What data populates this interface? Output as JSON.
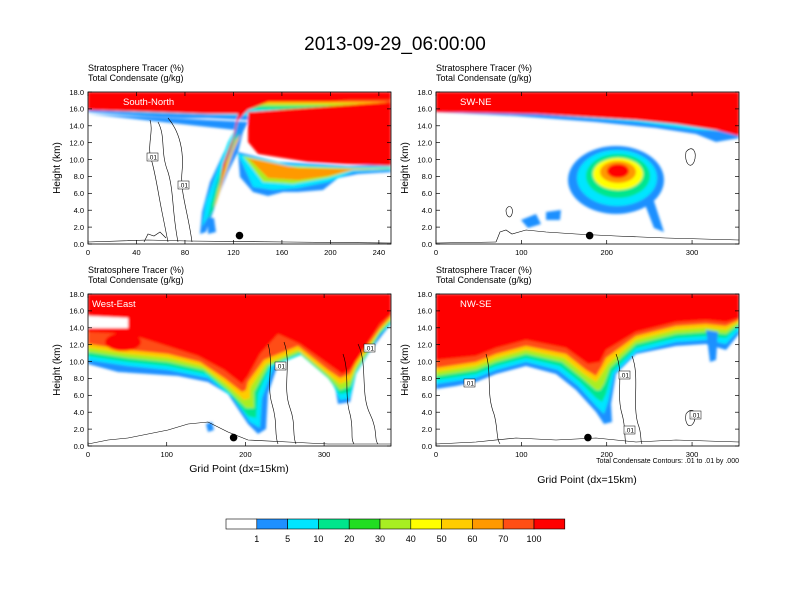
{
  "figure": {
    "title": "2013-09-29_06:00:00",
    "x_axis_title": "Grid Point (dx=15km)",
    "contour_note": "Total Condensate Contours: .01 to .01 by .000"
  },
  "colors": {
    "c1": "#ffffff",
    "c2": "#1e90ff",
    "c3": "#00e5ff",
    "c4": "#00e68c",
    "c5": "#22dd22",
    "c6": "#a8ee22",
    "c7": "#ffff00",
    "c8": "#ffcc00",
    "c9": "#ff9900",
    "c10": "#ff4e14",
    "c11": "#ff0000"
  },
  "chart_data": [
    {
      "type": "heatmap",
      "name": "South-North",
      "title_line1": "Stratosphere Tracer   (%)",
      "title_line2": "Total Condensate   (g/kg)",
      "ylabel": "Height (km)",
      "xlabel": "",
      "xlim": [
        0,
        250
      ],
      "ylim": [
        0,
        18
      ],
      "x_ticks": [
        0,
        40,
        80,
        120,
        160,
        200,
        240
      ],
      "y_ticks": [
        "0.0",
        "2.0",
        "4.0",
        "6.0",
        "8.0",
        "10.0",
        "12.0",
        "14.0",
        "16.0",
        "18.0"
      ],
      "contour_labels": [
        ".01",
        ".01"
      ],
      "marker": {
        "x": 125,
        "y": 1.0
      },
      "tracer_field_description": "stratosphere tracer 100% above ~15 km, tongue descending from 15 km at x~60-130 down to ~1.5 km at x~100-110, layer near 9-11 km east of x~150"
    },
    {
      "type": "heatmap",
      "name": "SW-NE",
      "title_line1": "Stratosphere Tracer   (%)",
      "title_line2": "Total Condensate   (g/kg)",
      "ylabel": "",
      "xlabel": "",
      "xlim": [
        0,
        355
      ],
      "ylim": [
        0,
        18
      ],
      "x_ticks": [
        0,
        100,
        200,
        300
      ],
      "y_ticks": [
        "0.0",
        "2.0",
        "4.0",
        "6.0",
        "8.0",
        "10.0",
        "12.0",
        "14.0",
        "16.0",
        "18.0"
      ],
      "contour_labels": [],
      "marker": {
        "x": 180,
        "y": 1.0
      },
      "tracer_field_description": "100% above ~14 km, isolated blob centered near x~210, 8.5 km"
    },
    {
      "type": "heatmap",
      "name": "West-East",
      "title_line1": "Stratosphere Tracer   (%)",
      "title_line2": "Total Condensate   (g/kg)",
      "ylabel": "Height (km)",
      "xlabel": "Grid Point (dx=15km)",
      "xlim": [
        0,
        385
      ],
      "ylim": [
        0,
        18
      ],
      "x_ticks": [
        0,
        100,
        200,
        300
      ],
      "y_ticks": [
        "0.0",
        "2.0",
        "4.0",
        "6.0",
        "8.0",
        "10.0",
        "12.0",
        "14.0",
        "16.0",
        "18.0"
      ],
      "contour_labels": [
        ".01",
        ".01"
      ],
      "marker": {
        "x": 185,
        "y": 1.0
      },
      "tracer_field_description": "100% above ~15 km, local maximum near x~40, 12 km, deep tongue descending to ~2 km at x~200, second fold near x~290-330"
    },
    {
      "type": "heatmap",
      "name": "NW-SE",
      "title_line1": "Stratosphere Tracer   (%)",
      "title_line2": "Total Condensate   (g/kg)",
      "ylabel": "Height (km)",
      "xlabel": "Grid Point (dx=15km)",
      "xlim": [
        0,
        355
      ],
      "ylim": [
        0,
        18
      ],
      "x_ticks": [
        0,
        100,
        200,
        300
      ],
      "y_ticks": [
        "0.0",
        "2.0",
        "4.0",
        "6.0",
        "8.0",
        "10.0",
        "12.0",
        "14.0",
        "16.0",
        "18.0"
      ],
      "contour_labels": [
        ".01",
        ".01",
        ".01",
        ".01"
      ],
      "marker": {
        "x": 178,
        "y": 1.0
      },
      "tracer_field_description": "100% above ~12-14 km, deep descending tongue reaching ~2 km near x~195"
    }
  ],
  "colorbar": {
    "labels": [
      "1",
      "5",
      "10",
      "20",
      "30",
      "40",
      "50",
      "60",
      "70",
      "100"
    ]
  }
}
